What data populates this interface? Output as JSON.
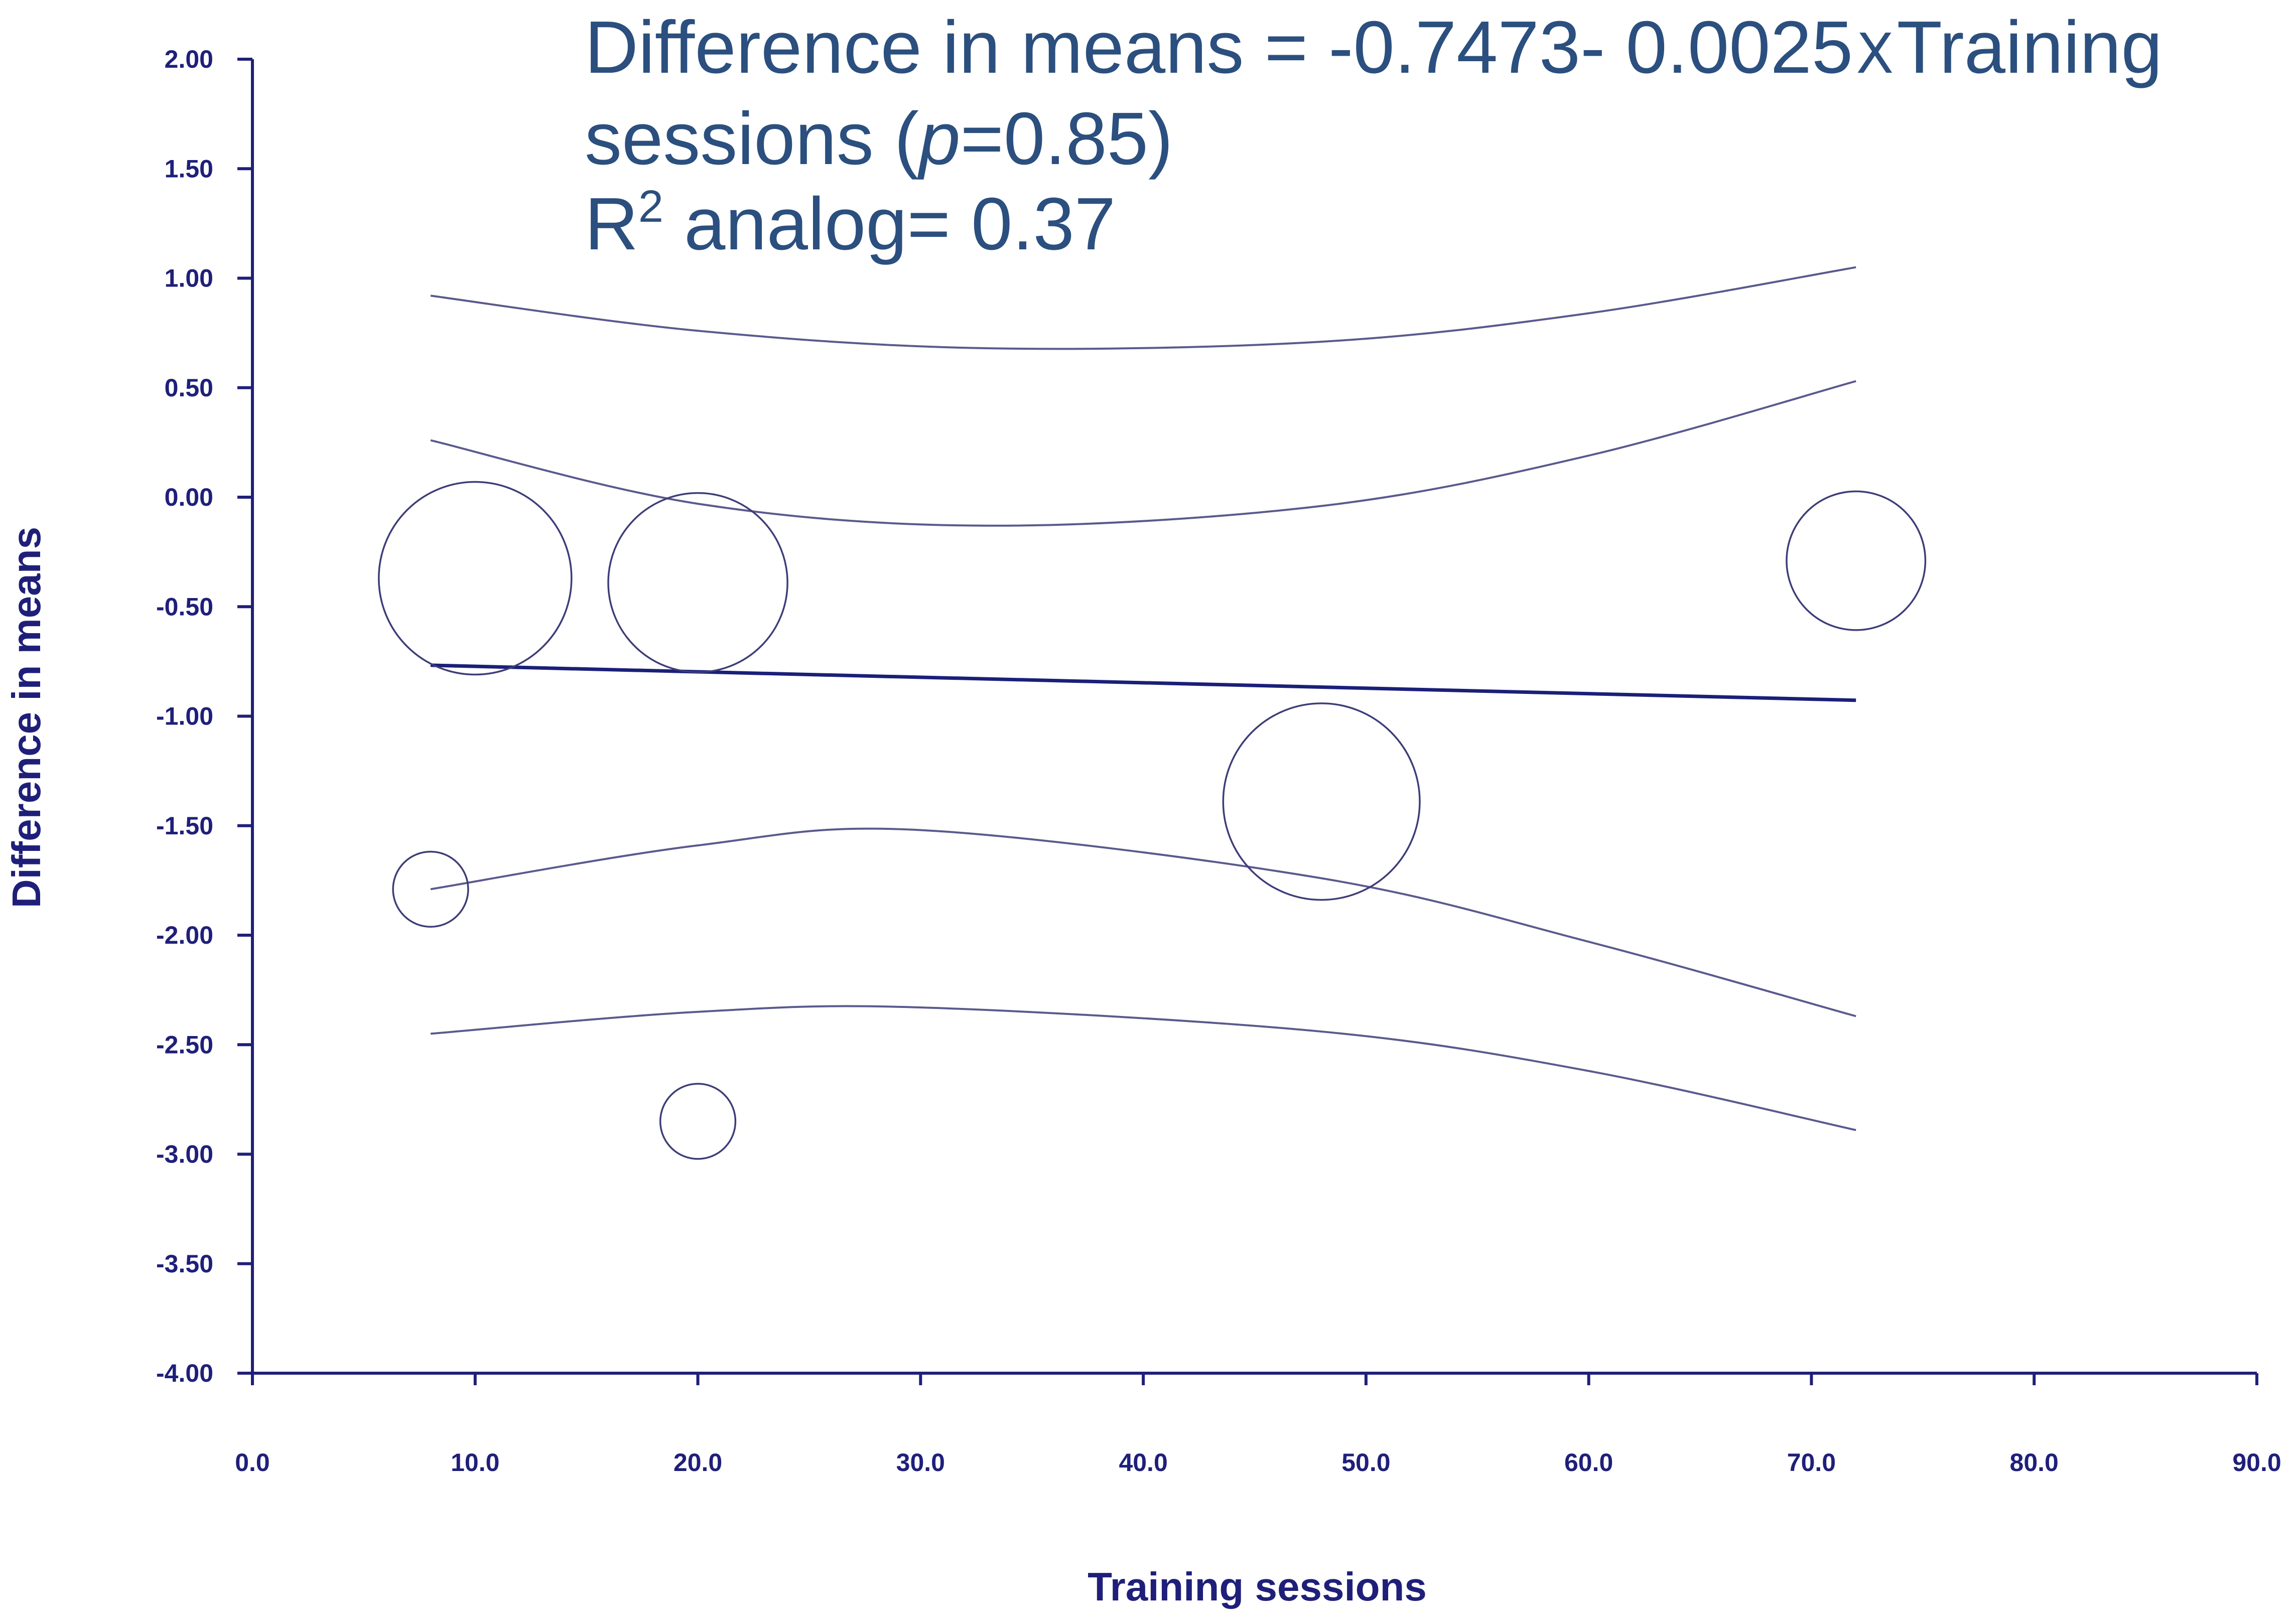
{
  "annotation": {
    "line1_a": "Difference in means = -0.7473- 0.0025",
    "line1_x": "X",
    "line1_b": "Training",
    "line2_a": "sessions (",
    "line2_p": "p",
    "line2_b": "=0.85)",
    "line3_a": "R",
    "line3_sup": "2",
    "line3_b": " analog= 0.37"
  },
  "chart_data": {
    "type": "scatter",
    "title": "",
    "xlabel": "Training sessions",
    "ylabel": "Difference in means",
    "xlim": [
      0,
      90
    ],
    "ylim": [
      -4,
      2
    ],
    "x_ticks": [
      "0.0",
      "10.0",
      "20.0",
      "30.0",
      "40.0",
      "50.0",
      "60.0",
      "70.0",
      "80.0",
      "90.0"
    ],
    "y_ticks": [
      "2.00",
      "1.50",
      "1.00",
      "0.50",
      "0.00",
      "-0.50",
      "-1.00",
      "-1.50",
      "-2.00",
      "-2.50",
      "-3.00",
      "-3.50",
      "-4.00"
    ],
    "points": [
      {
        "x": 10,
        "y": -0.37,
        "weight": 1.0
      },
      {
        "x": 20,
        "y": -0.39,
        "weight": 0.93
      },
      {
        "x": 72,
        "y": -0.29,
        "weight": 0.72
      },
      {
        "x": 48,
        "y": -1.39,
        "weight": 1.02
      },
      {
        "x": 8,
        "y": -1.79,
        "weight": 0.39
      },
      {
        "x": 20,
        "y": -2.85,
        "weight": 0.39
      }
    ],
    "regression": {
      "intercept": -0.7473,
      "slope": -0.0025,
      "x_range": [
        8,
        72
      ]
    },
    "bands": [
      {
        "name": "upper-outer",
        "x": [
          8,
          20,
          33,
          48,
          60,
          72
        ],
        "y": [
          0.92,
          0.76,
          0.68,
          0.71,
          0.84,
          1.05
        ]
      },
      {
        "name": "upper-inner",
        "x": [
          8,
          20,
          33,
          48,
          60,
          72
        ],
        "y": [
          0.26,
          -0.03,
          -0.13,
          -0.04,
          0.19,
          0.53
        ]
      },
      {
        "name": "lower-inner",
        "x": [
          8,
          20,
          30,
          48,
          60,
          72
        ],
        "y": [
          -1.79,
          -1.59,
          -1.52,
          -1.74,
          -2.03,
          -2.37
        ]
      },
      {
        "name": "lower-outer",
        "x": [
          8,
          20,
          30,
          48,
          60,
          72
        ],
        "y": [
          -2.45,
          -2.35,
          -2.33,
          -2.44,
          -2.62,
          -2.89
        ]
      }
    ],
    "colors": {
      "axis": "#1f1f7a",
      "regression": "#1a1f78",
      "bands": "#5a5a8e",
      "points": "#3d3d78"
    }
  }
}
